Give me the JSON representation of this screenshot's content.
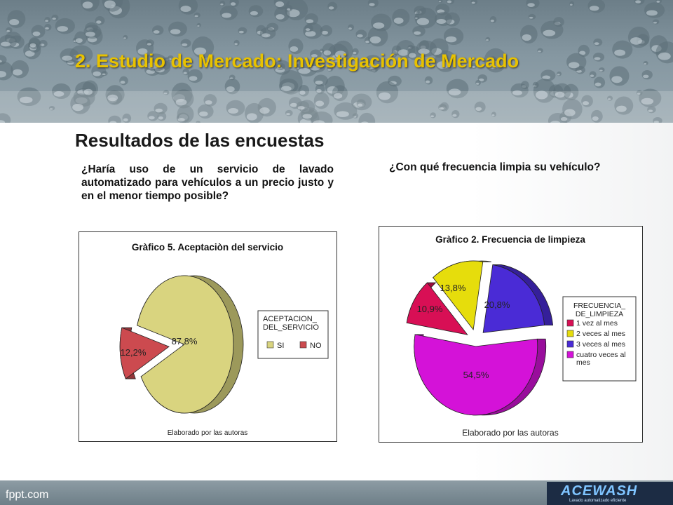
{
  "slide": {
    "title": "2. Estudio de Mercado: Investigación de Mercado",
    "section_title": "Resultados de las encuestas",
    "question_left": "¿Haría uso de un servicio de lavado automatizado para vehículos a un precio justo y en el menor tiempo posible?",
    "question_right": "¿Con qué frecuencia limpia su vehículo?",
    "footer_brand": "fppt.com",
    "logo_text": "ACEWASH",
    "logo_sub": "Lavado automatizado eficiente"
  },
  "chart_data": [
    {
      "type": "pie",
      "title": "Gràfico 5. Aceptaciòn del servicio",
      "note": "Elaborado por las autoras",
      "legend": {
        "title": "ACEPTACION_ DEL_SERVICIO",
        "placement": "right"
      },
      "slices": [
        {
          "label": "SI",
          "value": 87.8,
          "display": "87,8%",
          "color": "#d9d47f"
        },
        {
          "label": "NO",
          "value": 12.2,
          "display": "12,2%",
          "color": "#cc4a4f"
        }
      ]
    },
    {
      "type": "pie",
      "title": "Gràfico 2. Frecuencia de limpieza",
      "note": "Elaborado por las autoras",
      "legend": {
        "title": "FRECUENCIA_ DE_LIMPIEZA",
        "placement": "right"
      },
      "slices": [
        {
          "label": "1 vez al mes",
          "value": 10.9,
          "display": "10,9%",
          "color": "#d80f55"
        },
        {
          "label": "2 veces al mes",
          "value": 13.8,
          "display": "13,8%",
          "color": "#e6dd0c"
        },
        {
          "label": "3 veces al mes",
          "value": 20.8,
          "display": "20,8%",
          "color": "#4a2bd6"
        },
        {
          "label": "cuatro veces al mes",
          "value": 54.5,
          "display": "54,5%",
          "color": "#d412d8"
        }
      ]
    }
  ]
}
